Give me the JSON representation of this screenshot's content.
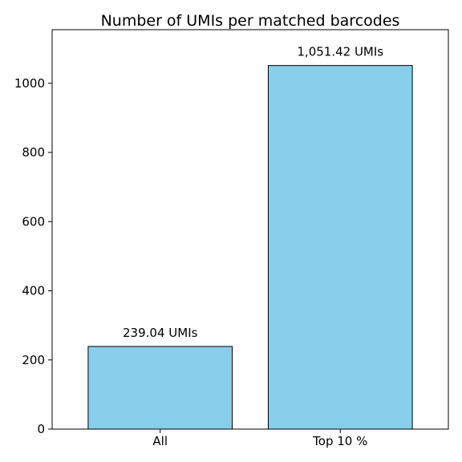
{
  "chart_data": {
    "type": "bar",
    "title": "Number of UMIs per matched barcodes",
    "xlabel": "",
    "ylabel": "",
    "categories": [
      "All",
      "Top 10 %"
    ],
    "values": [
      239.04,
      1051.42
    ],
    "data_labels": [
      "239.04 UMIs",
      "1,051.42 UMIs"
    ],
    "ylim": [
      0,
      1155
    ],
    "yticks": [
      0,
      200,
      400,
      600,
      800,
      1000
    ],
    "bar_color": "#87ceeb",
    "bar_edge_color": "#000000",
    "grid": false,
    "legend": "none"
  }
}
